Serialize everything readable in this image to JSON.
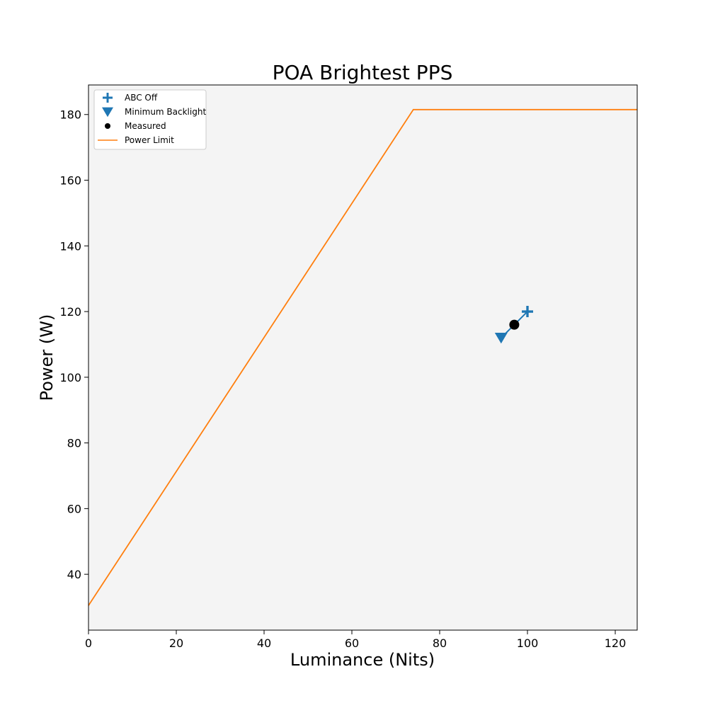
{
  "chart_data": {
    "type": "scatter",
    "title": "POA Brightest PPS",
    "xlabel": "Luminance (Nits)",
    "ylabel": "Power (W)",
    "xlim": [
      0,
      125
    ],
    "ylim": [
      23,
      189
    ],
    "xticks": [
      0,
      20,
      40,
      60,
      80,
      100,
      120
    ],
    "yticks": [
      40,
      60,
      80,
      100,
      120,
      140,
      160,
      180
    ],
    "grid": false,
    "legend_position": "upper-left",
    "background_color": "#f4f4f4",
    "colors": {
      "blue": "#1f77b4",
      "orange": "#ff7f0e",
      "black": "#000000"
    },
    "series": [
      {
        "name": "ABC Off",
        "marker": "plus",
        "color": "#1f77b4",
        "points": [
          [
            100,
            120
          ]
        ]
      },
      {
        "name": "Minimum Backlight",
        "marker": "triangle-down",
        "color": "#1f77b4",
        "points": [
          [
            94,
            112
          ]
        ]
      },
      {
        "name": "Measured",
        "marker": "circle",
        "color": "#000000",
        "points": [
          [
            97,
            116
          ]
        ]
      },
      {
        "name": "Power Limit",
        "marker": "line",
        "color": "#ff7f0e",
        "points": [
          [
            0,
            30.5
          ],
          [
            74,
            181.5
          ],
          [
            125,
            181.5
          ]
        ]
      }
    ],
    "connector": {
      "color": "#1f77b4",
      "points": [
        [
          94,
          112
        ],
        [
          100,
          120
        ]
      ]
    }
  }
}
